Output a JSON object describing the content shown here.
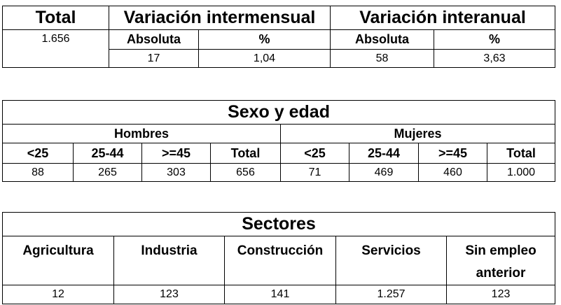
{
  "table1": {
    "headers": [
      "Total",
      "Variación intermensual",
      "Variación interanual"
    ],
    "subheaders": [
      "Absoluta",
      "%",
      "Absoluta",
      "%"
    ],
    "total": "1.656",
    "values": [
      "17",
      "1,04",
      "58",
      "3,63"
    ]
  },
  "table2": {
    "title": "Sexo y edad",
    "groups": [
      "Hombres",
      "Mujeres"
    ],
    "columns": [
      "<25",
      "25-44",
      ">=45",
      "Total",
      "<25",
      "25-44",
      ">=45",
      "Total"
    ],
    "values": [
      "88",
      "265",
      "303",
      "656",
      "71",
      "469",
      "460",
      "1.000"
    ]
  },
  "table3": {
    "title": "Sectores",
    "columns": [
      "Agricultura",
      "Industria",
      "Construcción",
      "Servicios",
      "Sin empleo anterior"
    ],
    "values": [
      "12",
      "123",
      "141",
      "1.257",
      "123"
    ]
  }
}
